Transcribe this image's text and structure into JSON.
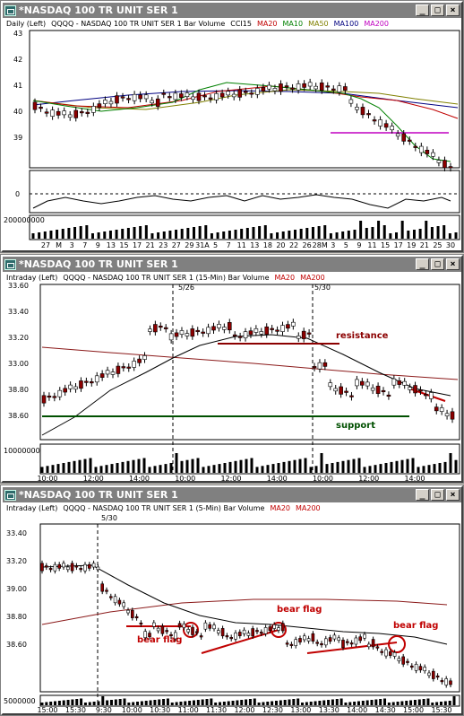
{
  "windows": [
    {
      "title": "*NASDAQ 100 TR UNIT SER 1",
      "buttons": [
        "_",
        "□",
        "×"
      ],
      "info": [
        {
          "t": "Daily  (Left)",
          "c": "#000"
        },
        {
          "t": "QQQQ - NASDAQ 100 TR UNIT SER 1  Bar  Volume",
          "c": "#000"
        },
        {
          "t": "CCI15",
          "c": "#000"
        },
        {
          "t": "MA20",
          "c": "#c00000"
        },
        {
          "t": "MA10",
          "c": "#008000"
        },
        {
          "t": "MA50",
          "c": "#808000"
        },
        {
          "t": "MA100",
          "c": "#000080"
        },
        {
          "t": "MA200",
          "c": "#c000c0"
        }
      ],
      "yticks": [
        "43",
        "42",
        "41",
        "40",
        "39"
      ],
      "cci_tick": "0",
      "vol_tick": "200000000",
      "xticks": [
        "27",
        "M",
        "3",
        "7",
        "9",
        "13",
        "15",
        "17",
        "21",
        "23",
        "27",
        "29",
        "31A",
        "5",
        "7",
        "11",
        "13",
        "18",
        "20",
        "22",
        "26",
        "28M",
        "3",
        "5",
        "9",
        "11",
        "15",
        "17",
        "19",
        "21",
        "25",
        "30"
      ],
      "annotations": []
    },
    {
      "title": "*NASDAQ 100 TR UNIT SER 1",
      "buttons": [
        "_",
        "□",
        "×"
      ],
      "info": [
        {
          "t": "Intraday (Left)",
          "c": "#000"
        },
        {
          "t": "QQQQ - NASDAQ 100 TR UNIT SER 1 (15-Min)  Bar  Volume",
          "c": "#000"
        },
        {
          "t": "MA20",
          "c": "#c00000"
        },
        {
          "t": "MA200",
          "c": "#c00000"
        }
      ],
      "yticks": [
        "33.60",
        "33.40",
        "33.20",
        "33.00",
        "38.80",
        "38.60"
      ],
      "vol_tick": "10000000",
      "xticks": [
        "10:00",
        "12:00",
        "14:00",
        "10:00",
        "12:00",
        "14:00",
        "10:00",
        "12:00",
        "14:00"
      ],
      "date_marks": [
        "5/26",
        "5/30"
      ],
      "annotations": [
        "resistance",
        "support"
      ]
    },
    {
      "title": "*NASDAQ 100 TR UNIT SER 1",
      "buttons": [
        "_",
        "□",
        "×"
      ],
      "info": [
        {
          "t": "Intraday (Left)",
          "c": "#000"
        },
        {
          "t": "QQQQ - NASDAQ 100 TR UNIT SER 1 (5-Min)  Bar  Volume",
          "c": "#000"
        },
        {
          "t": "MA20",
          "c": "#c00000"
        },
        {
          "t": "MA200",
          "c": "#c00000"
        }
      ],
      "yticks": [
        "33.40",
        "33.20",
        "39.00",
        "38.80",
        "38.60"
      ],
      "vol_tick": "5000000",
      "xticks": [
        "15:00",
        "15:30",
        "9:30",
        "10:00",
        "10:30",
        "11:00",
        "11:30",
        "12:00",
        "12:30",
        "13:00",
        "13:30",
        "14:00",
        "14:30",
        "15:00",
        "15:30"
      ],
      "date_marks": [
        "5/30"
      ],
      "annotations": [
        "bear flag",
        "bear flag",
        "bear flag"
      ]
    }
  ]
}
